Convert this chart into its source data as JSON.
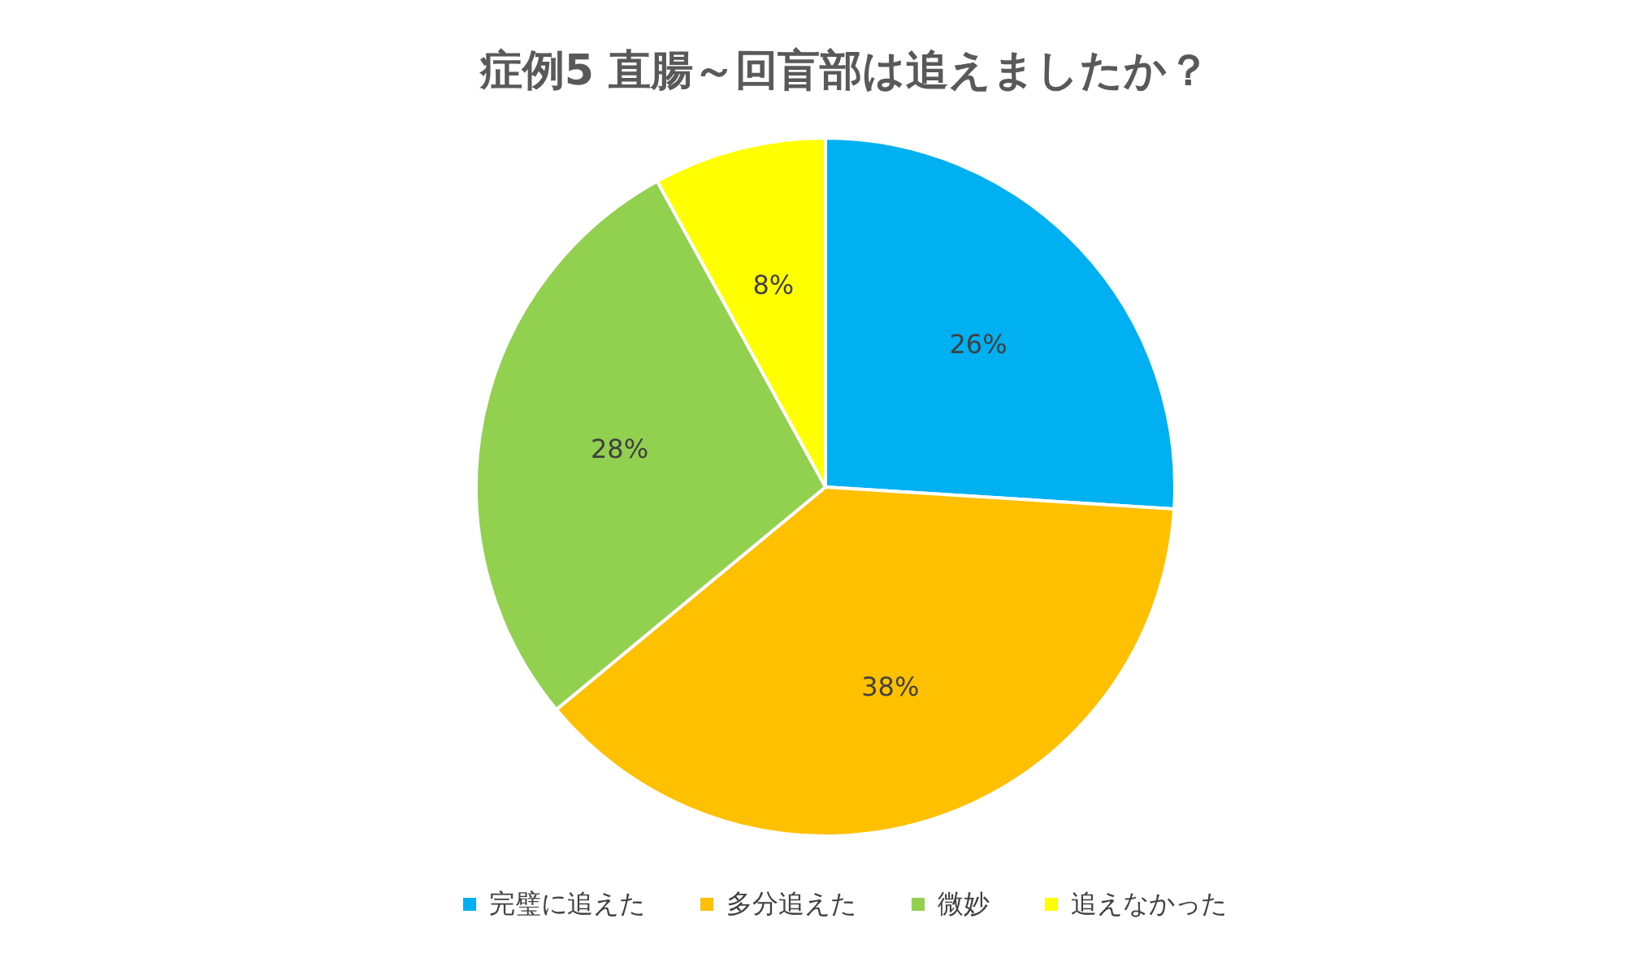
{
  "chart_data": {
    "type": "pie",
    "title": "症例5 直腸～回盲部は追えましたか？",
    "categories": [
      "完璧に追えた",
      "多分追えた",
      "微妙",
      "追えなかった"
    ],
    "values": [
      26,
      38,
      28,
      8
    ],
    "colors": [
      "#00b0f0",
      "#ffc000",
      "#92d050",
      "#ffff00"
    ],
    "value_labels": [
      "26%",
      "38%",
      "28%",
      "8%"
    ],
    "legend": "bottom"
  }
}
